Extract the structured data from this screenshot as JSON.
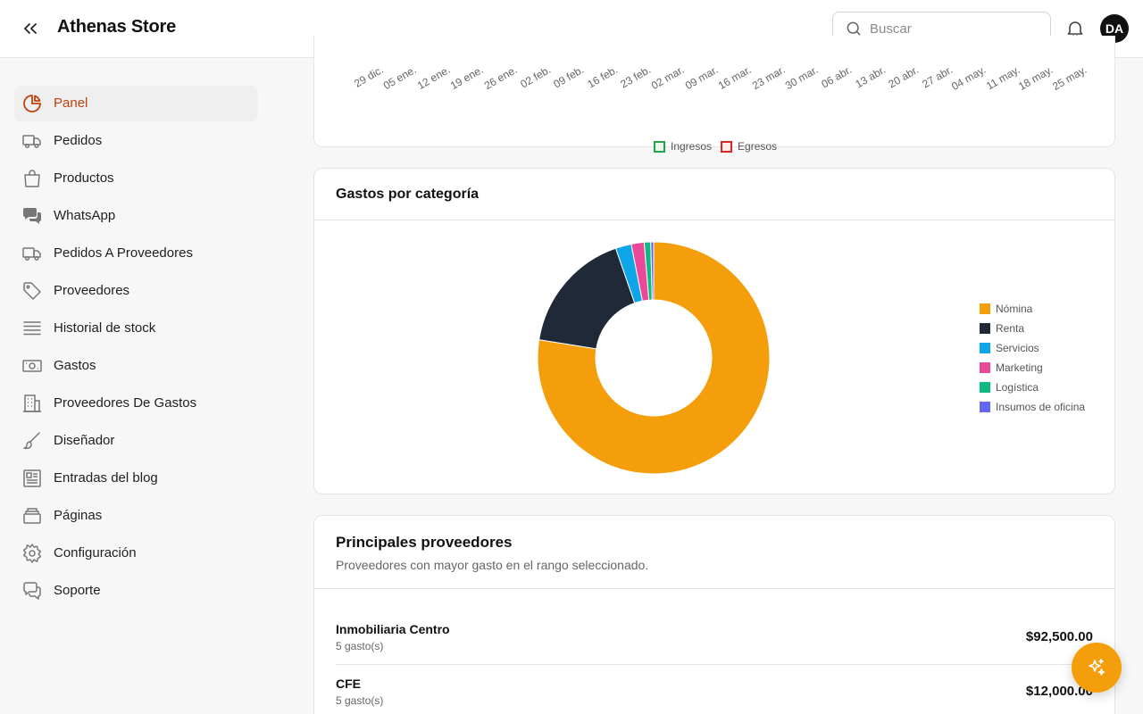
{
  "header": {
    "title": "Athenas Store",
    "search_placeholder": "Buscar",
    "avatar_initials": "DA"
  },
  "sidebar": {
    "items": [
      {
        "label": "Panel",
        "icon": "pie-chart-icon",
        "active": true
      },
      {
        "label": "Pedidos",
        "icon": "truck-icon"
      },
      {
        "label": "Productos",
        "icon": "shopping-bag-icon"
      },
      {
        "label": "WhatsApp",
        "icon": "chat-bubbles-icon"
      },
      {
        "label": "Pedidos A Proveedores",
        "icon": "truck-icon"
      },
      {
        "label": "Proveedores",
        "icon": "tag-icon"
      },
      {
        "label": "Historial de stock",
        "icon": "list-icon"
      },
      {
        "label": "Gastos",
        "icon": "banknote-icon"
      },
      {
        "label": "Proveedores De Gastos",
        "icon": "building-icon"
      },
      {
        "label": "Diseñador",
        "icon": "brush-icon"
      },
      {
        "label": "Entradas del blog",
        "icon": "newspaper-icon"
      },
      {
        "label": "Páginas",
        "icon": "layers-icon"
      },
      {
        "label": "Configuración",
        "icon": "gear-icon"
      },
      {
        "label": "Soporte",
        "icon": "support-chat-icon"
      }
    ]
  },
  "cashflow": {
    "x_ticks": [
      "29 dic.",
      "05 ene.",
      "12 ene.",
      "19 ene.",
      "26 ene.",
      "02 feb.",
      "09 feb.",
      "16 feb.",
      "23 feb.",
      "02 mar.",
      "09 mar.",
      "16 mar.",
      "23 mar.",
      "30 mar.",
      "06 abr.",
      "13 abr.",
      "20 abr.",
      "27 abr.",
      "04 may.",
      "11 may.",
      "18 may.",
      "25 may."
    ],
    "legend": [
      {
        "name": "Ingresos",
        "color": "#22a34a"
      },
      {
        "name": "Egresos",
        "color": "#dc2626"
      }
    ]
  },
  "expenses_card": {
    "title": "Gastos por categoría"
  },
  "chart_data": {
    "type": "pie",
    "title": "Gastos por categoría",
    "donut": true,
    "categories": [
      "Nómina",
      "Renta",
      "Servicios",
      "Marketing",
      "Logística",
      "Insumos de oficina"
    ],
    "values": [
      77.5,
      17.2,
      2.2,
      1.8,
      0.9,
      0.4
    ],
    "colors": [
      "#f59e0b",
      "#1f2937",
      "#0ea5e9",
      "#ec4899",
      "#10b981",
      "#6366f1"
    ],
    "legend_position": "right"
  },
  "suppliers": {
    "title": "Principales proveedores",
    "subtitle": "Proveedores con mayor gasto en el rango seleccionado.",
    "rows": [
      {
        "name": "Inmobiliaria Centro",
        "count": "5 gasto(s)",
        "amount": "$92,500.00"
      },
      {
        "name": "CFE",
        "count": "5 gasto(s)",
        "amount": "$12,000.00"
      }
    ]
  }
}
